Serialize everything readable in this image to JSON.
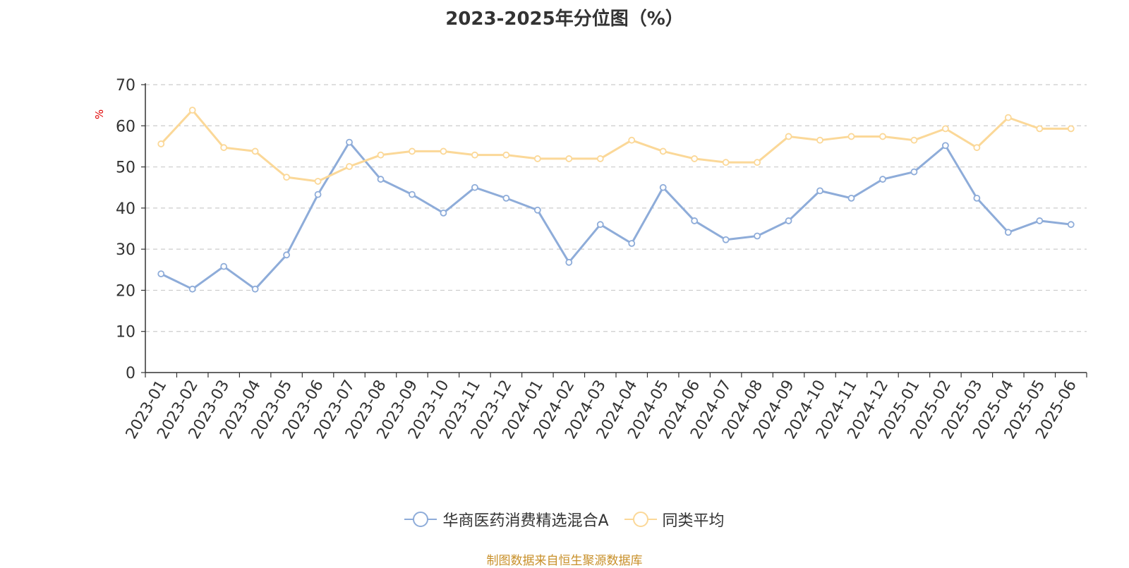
{
  "chart_data": {
    "type": "line",
    "title": "2023-2025年分位图（%）",
    "ylabel": "%",
    "xlabel": "",
    "ylim": [
      0,
      70
    ],
    "yticks": [
      0,
      10,
      20,
      30,
      40,
      50,
      60,
      70
    ],
    "grid": true,
    "legend_position": "bottom",
    "categories": [
      "2023-01",
      "2023-02",
      "2023-03",
      "2023-04",
      "2023-05",
      "2023-06",
      "2023-07",
      "2023-08",
      "2023-09",
      "2023-10",
      "2023-11",
      "2023-12",
      "2024-01",
      "2024-02",
      "2024-03",
      "2024-04",
      "2024-05",
      "2024-06",
      "2024-07",
      "2024-08",
      "2024-09",
      "2024-10",
      "2024-11",
      "2024-12",
      "2025-01",
      "2025-02",
      "2025-03",
      "2025-04",
      "2025-05",
      "2025-06"
    ],
    "series": [
      {
        "name": "华商医药消费精选混合A",
        "color": "#8eacd9",
        "values": [
          24,
          20.3,
          25.8,
          20.3,
          28.6,
          43.3,
          56,
          47,
          43.3,
          38.8,
          45,
          42.4,
          39.5,
          26.8,
          36,
          31.4,
          45,
          36.9,
          32.3,
          33.2,
          36.9,
          44.2,
          42.4,
          47,
          48.8,
          55.2,
          42.4,
          34.1,
          36.9,
          36
        ]
      },
      {
        "name": "同类平均",
        "color": "#fbd898",
        "values": [
          55.6,
          63.8,
          54.7,
          53.8,
          47.5,
          46.5,
          50.1,
          52.9,
          53.8,
          53.8,
          52.9,
          52.9,
          52,
          52,
          52,
          56.5,
          53.8,
          52,
          51.1,
          51.1,
          57.4,
          56.5,
          57.4,
          57.4,
          56.5,
          59.3,
          54.7,
          62,
          59.3,
          59.3
        ]
      }
    ]
  },
  "source_note": "制图数据来自恒生聚源数据库"
}
